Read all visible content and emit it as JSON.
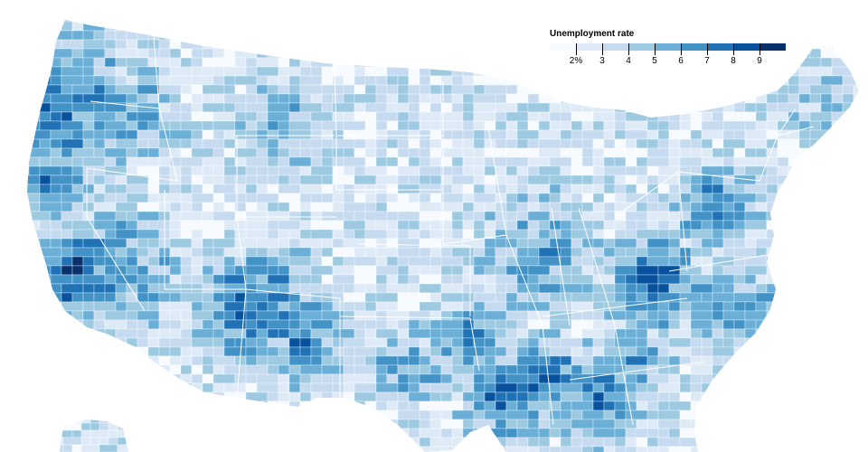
{
  "legend": {
    "title": "Unemployment rate",
    "ticks": [
      "2%",
      "3",
      "4",
      "5",
      "6",
      "7",
      "8",
      "9"
    ],
    "colors": [
      "#f7fbff",
      "#deebf7",
      "#c6dbef",
      "#9ecae1",
      "#6baed6",
      "#4292c6",
      "#2171b5",
      "#08519c",
      "#08306b"
    ]
  },
  "map": {
    "region": "Contiguous United States with partial Alaska",
    "level": "county",
    "boundary_color": "#ffffff"
  }
}
